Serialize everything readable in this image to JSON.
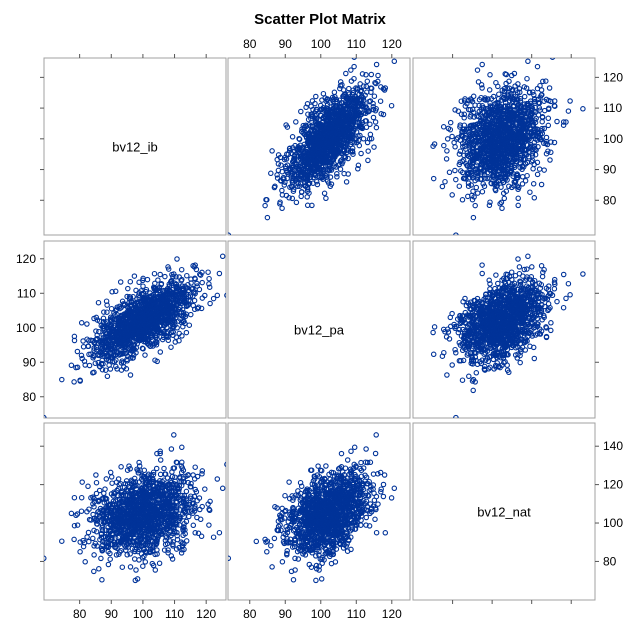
{
  "chart_data": {
    "type": "scatter-matrix",
    "title": "Scatter Plot Matrix",
    "variables": [
      {
        "name": "bv12_ib",
        "range": [
          70,
          125
        ],
        "ticks": [
          80,
          90,
          100,
          110,
          120
        ]
      },
      {
        "name": "bv12_pa",
        "range": [
          75,
          124
        ],
        "ticks": [
          80,
          90,
          100,
          110,
          120
        ]
      },
      {
        "name": "bv12_nat",
        "range": [
          62,
          150
        ],
        "ticks": [
          80,
          100,
          120,
          140
        ]
      }
    ],
    "marker_color": "#003399",
    "frame_color": "#a0a0a0",
    "n_points_per_panel": 1400,
    "axis_placement": {
      "top": "column 2 (bv12_pa)",
      "bottom": "columns 1-2",
      "left": "row 2 (bv12_pa)",
      "right": "rows 1 and 3"
    },
    "correlations": {
      "ib_pa": 0.65,
      "ib_nat": 0.45,
      "pa_nat": 0.45
    },
    "means": {
      "bv12_ib": 100,
      "bv12_pa": 102,
      "bv12_nat": 105
    },
    "sds": {
      "bv12_ib": 8,
      "bv12_pa": 6,
      "bv12_nat": 11
    }
  }
}
